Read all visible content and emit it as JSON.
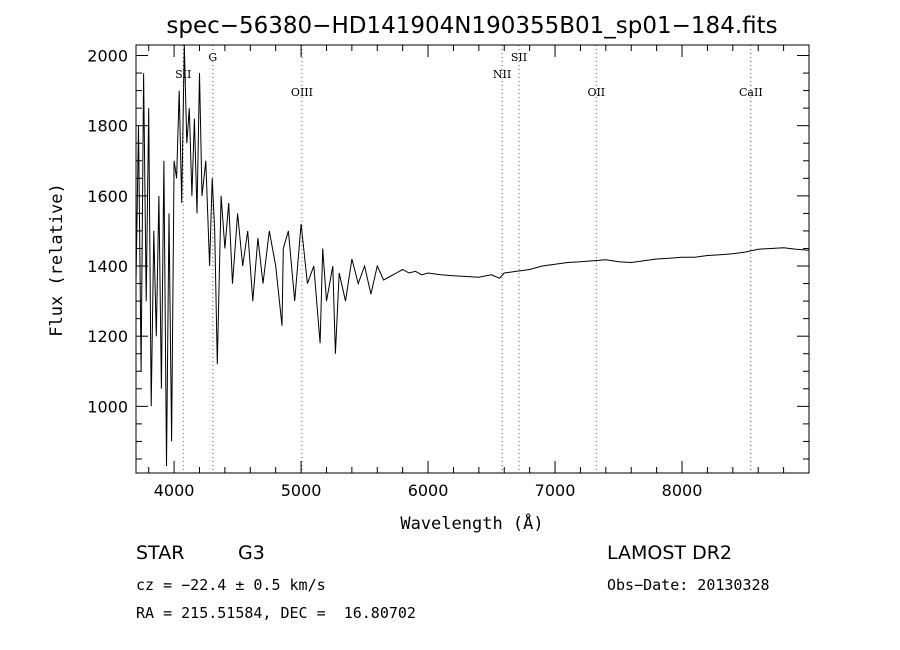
{
  "chart_data": {
    "type": "line",
    "title": "spec−56380−HD141904N190355B01_sp01−184.fits",
    "xlabel": "Wavelength (Å)",
    "ylabel": "Flux (relative)",
    "xlim": [
      3700,
      9000
    ],
    "ylim": [
      810,
      2030
    ],
    "x_ticks": [
      4000,
      5000,
      6000,
      7000,
      8000
    ],
    "y_ticks": [
      1000,
      1200,
      1400,
      1600,
      1800,
      2000
    ],
    "grid": false,
    "series": [
      {
        "x": [
          3700,
          3720,
          3740,
          3760,
          3780,
          3800,
          3820,
          3840,
          3860,
          3880,
          3900,
          3920,
          3940,
          3960,
          3980,
          4000,
          4020,
          4040,
          4060,
          4080,
          4100,
          4120,
          4140,
          4160,
          4180,
          4200,
          4220,
          4250,
          4280,
          4300,
          4320,
          4340,
          4370,
          4400,
          4430,
          4460,
          4500,
          4540,
          4580,
          4620,
          4660,
          4700,
          4750,
          4800,
          4850,
          4860,
          4900,
          4950,
          5000,
          5050,
          5100,
          5150,
          5170,
          5200,
          5250,
          5270,
          5300,
          5350,
          5400,
          5450,
          5500,
          5550,
          5600,
          5650,
          5700,
          5750,
          5800,
          5850,
          5900,
          5950,
          6000,
          6100,
          6200,
          6300,
          6400,
          6500,
          6563,
          6600,
          6700,
          6800,
          6900,
          7000,
          7100,
          7200,
          7300,
          7400,
          7500,
          7600,
          7700,
          7800,
          7900,
          8000,
          8100,
          8200,
          8300,
          8400,
          8500,
          8600,
          8700,
          8800,
          8900,
          9000
        ],
        "y": [
          1350,
          1800,
          1100,
          1950,
          1300,
          1850,
          1000,
          1500,
          1200,
          1600,
          1050,
          1700,
          830,
          1550,
          900,
          1700,
          1650,
          1900,
          1580,
          2030,
          1750,
          1850,
          1600,
          1820,
          1550,
          1950,
          1600,
          1700,
          1400,
          1650,
          1500,
          1120,
          1600,
          1450,
          1580,
          1350,
          1550,
          1400,
          1500,
          1300,
          1480,
          1350,
          1500,
          1400,
          1230,
          1450,
          1500,
          1300,
          1520,
          1350,
          1400,
          1180,
          1450,
          1300,
          1400,
          1150,
          1380,
          1300,
          1420,
          1350,
          1400,
          1320,
          1400,
          1360,
          1370,
          1380,
          1390,
          1380,
          1385,
          1375,
          1380,
          1375,
          1372,
          1370,
          1368,
          1375,
          1365,
          1380,
          1385,
          1390,
          1400,
          1405,
          1410,
          1412,
          1415,
          1418,
          1412,
          1410,
          1415,
          1420,
          1422,
          1425,
          1425,
          1430,
          1432,
          1435,
          1440,
          1448,
          1450,
          1452,
          1448,
          1445
        ]
      }
    ],
    "line_markers": [
      {
        "label": "SII",
        "x": 4072
      },
      {
        "label": "G",
        "x": 4305
      },
      {
        "label": "OIII",
        "x": 5007
      },
      {
        "label": "NII",
        "x": 6583
      },
      {
        "label": "SII",
        "x": 6716
      },
      {
        "label": "OII",
        "x": 7325
      },
      {
        "label": "CaII",
        "x": 8542
      }
    ]
  },
  "info": {
    "object_class": "STAR",
    "subclass": "G3",
    "survey": "LAMOST DR2",
    "cz": "cz = −22.4 ± 0.5 km/s",
    "obs_date": "Obs−Date: 20130328",
    "radec": "RA = 215.51584, DEC =  16.80702"
  }
}
